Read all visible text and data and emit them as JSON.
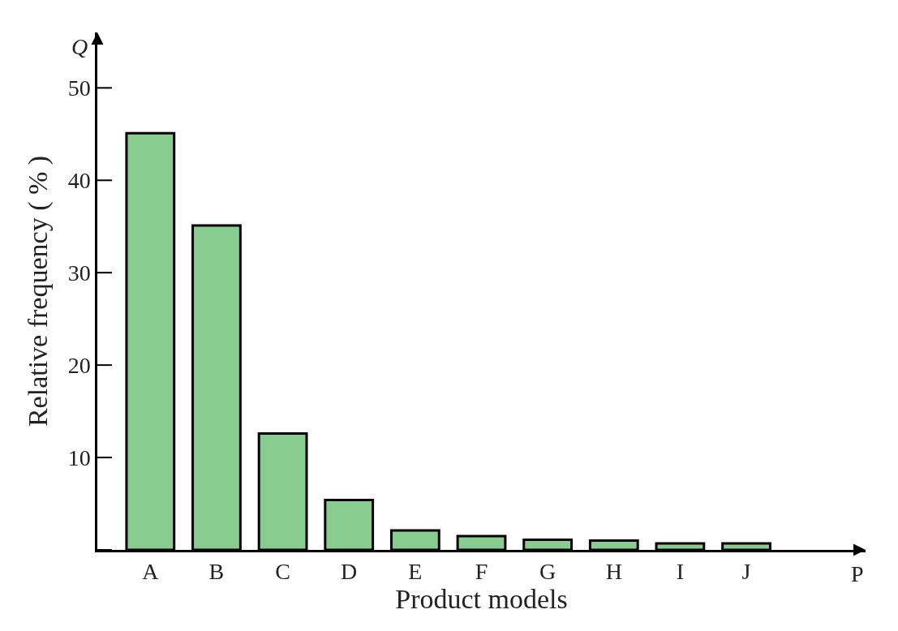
{
  "chart_data": {
    "type": "bar",
    "xlabel": "Product models",
    "ylabel": "Relative frequency ( % )",
    "categories": [
      "A",
      "B",
      "C",
      "D",
      "E",
      "F",
      "G",
      "H",
      "I",
      "J"
    ],
    "values": [
      45.1,
      35.1,
      12.6,
      5.4,
      2.1,
      1.5,
      1.1,
      1.0,
      0.7,
      0.7
    ],
    "color": "#88cc90",
    "ylim": [
      0,
      56
    ],
    "yticks": [
      {
        "value": 0,
        "label": null
      },
      10,
      20,
      30,
      40,
      50
    ],
    "annotations": [
      "Q",
      "P"
    ]
  }
}
